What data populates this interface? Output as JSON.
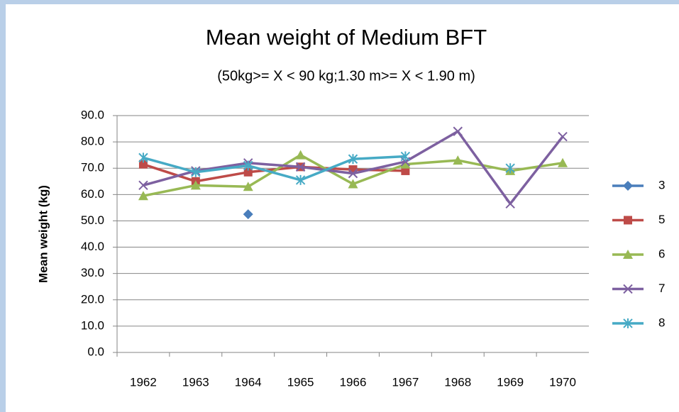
{
  "chart_data": {
    "type": "line",
    "title": "Mean weight of Medium BFT",
    "subtitle": "(50kg>= X < 90 kg;1.30  m>= X < 1.90 m)",
    "y_label": "Mean weight (kg)",
    "categories": [
      "1962",
      "1963",
      "1964",
      "1965",
      "1966",
      "1967",
      "1968",
      "1969",
      "1970"
    ],
    "series": [
      {
        "name": "3",
        "color": "#4a7ebb",
        "marker": "diamond",
        "values": [
          null,
          null,
          52.5,
          null,
          null,
          null,
          null,
          null,
          null
        ]
      },
      {
        "name": "5",
        "color": "#be4b48",
        "marker": "square",
        "values": [
          71.5,
          65,
          68.5,
          70.5,
          69.5,
          69,
          null,
          null,
          null
        ]
      },
      {
        "name": "6",
        "color": "#98b954",
        "marker": "triangle",
        "values": [
          59.5,
          63.5,
          63,
          75,
          64,
          71.5,
          73,
          69,
          72
        ]
      },
      {
        "name": "7",
        "color": "#7d60a0",
        "marker": "x",
        "values": [
          63.5,
          69,
          72,
          70.5,
          68,
          72.5,
          84,
          56.5,
          82
        ]
      },
      {
        "name": "8",
        "color": "#46aac5",
        "marker": "star",
        "values": [
          74,
          68.5,
          71,
          65.5,
          73.5,
          74.5,
          null,
          70,
          null
        ]
      }
    ],
    "ylim": [
      0,
      90
    ],
    "yticks": [
      {
        "value": 0,
        "label": "0.0"
      },
      {
        "value": 10,
        "label": "10.0"
      },
      {
        "value": 20,
        "label": "20.0"
      },
      {
        "value": 30,
        "label": "30.0"
      },
      {
        "value": 40,
        "label": "40.0"
      },
      {
        "value": 50,
        "label": "50.0"
      },
      {
        "value": 60,
        "label": "60.0"
      },
      {
        "value": 70,
        "label": "70.0"
      },
      {
        "value": 80,
        "label": "80.0"
      },
      {
        "value": 90,
        "label": "90.0"
      }
    ],
    "grid": true,
    "legend": "right"
  }
}
